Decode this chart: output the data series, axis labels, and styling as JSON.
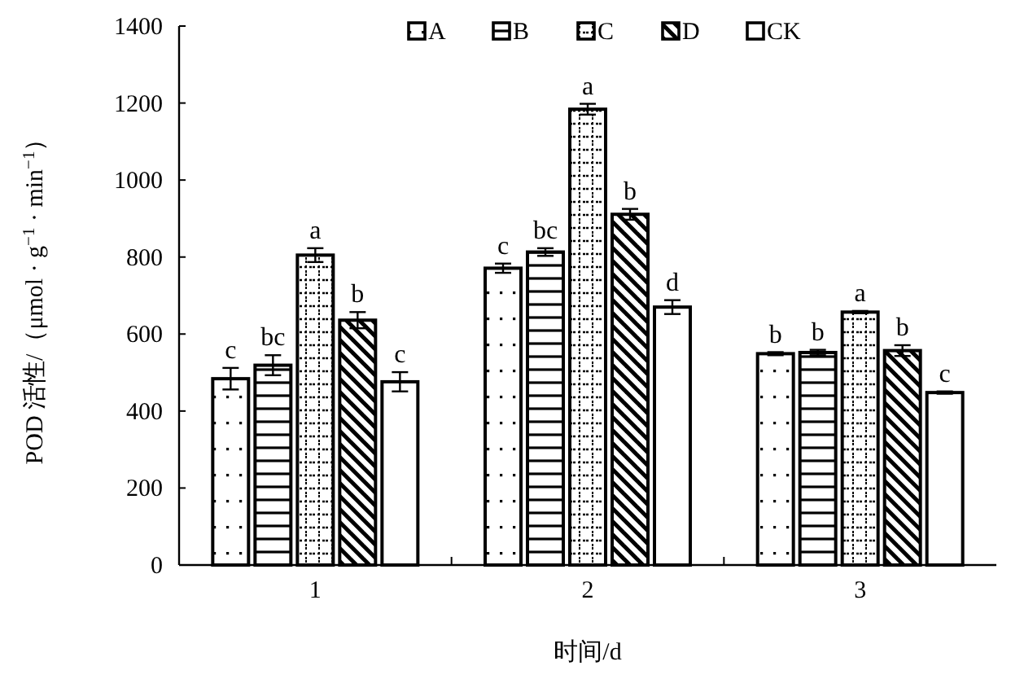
{
  "chart_data": {
    "type": "bar",
    "xlabel": "时间/d",
    "ylabel": "POD 活性/（μmol · g$^{−1}$ · min$^{−1}$）",
    "categories": [
      "1",
      "2",
      "3"
    ],
    "ylim": [
      0,
      1400
    ],
    "yticks": [
      0,
      200,
      400,
      600,
      800,
      1000,
      1200,
      1400
    ],
    "grid": false,
    "legend": "top",
    "series": [
      {
        "name": "A",
        "color": "#000000",
        "values": [
          484,
          771,
          549
        ],
        "errors": [
          28,
          12,
          4
        ],
        "value_labels": [
          "c",
          "c",
          "b"
        ]
      },
      {
        "name": "B",
        "color": "#000000",
        "values": [
          519,
          813,
          552
        ],
        "errors": [
          26,
          10,
          7
        ],
        "value_labels": [
          "bc",
          "bc",
          "b"
        ]
      },
      {
        "name": "C",
        "color": "#000000",
        "values": [
          805,
          1184,
          657
        ],
        "errors": [
          18,
          14,
          3
        ],
        "value_labels": [
          "a",
          "a",
          "a"
        ]
      },
      {
        "name": "D",
        "color": "#000000",
        "values": [
          636,
          911,
          557
        ],
        "errors": [
          21,
          14,
          14
        ],
        "value_labels": [
          "b",
          "b",
          "b"
        ]
      },
      {
        "name": "CK",
        "color": "#000000",
        "values": [
          476,
          670,
          448
        ],
        "errors": [
          25,
          18,
          3
        ],
        "value_labels": [
          "c",
          "d",
          "c"
        ]
      }
    ]
  }
}
